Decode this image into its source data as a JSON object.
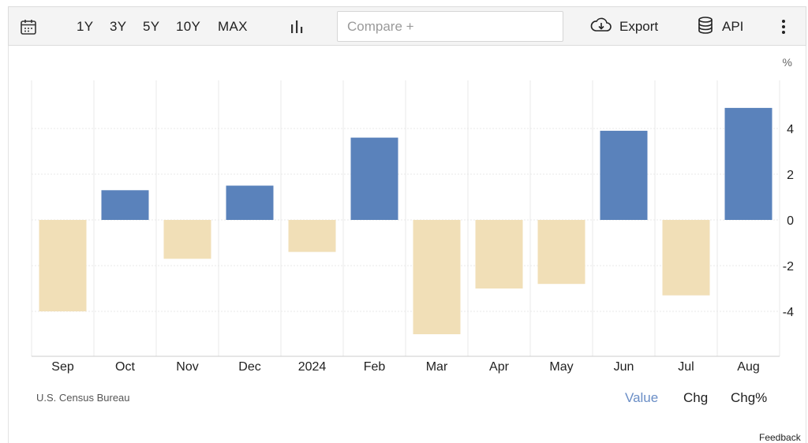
{
  "toolbar": {
    "ranges": [
      "1Y",
      "3Y",
      "5Y",
      "10Y",
      "MAX"
    ],
    "compare_placeholder": "Compare +",
    "export_label": "Export",
    "api_label": "API",
    "icons": [
      "calendar-icon",
      "bar-chart-icon",
      "cloud-download-icon",
      "database-icon",
      "more-vertical-icon"
    ]
  },
  "chart_data": {
    "type": "bar",
    "unit_label": "%",
    "categories": [
      "Sep",
      "Oct",
      "Nov",
      "Dec",
      "2024",
      "Feb",
      "Mar",
      "Apr",
      "May",
      "Jun",
      "Jul",
      "Aug"
    ],
    "values": [
      -4.0,
      1.3,
      -1.7,
      1.5,
      -1.4,
      3.6,
      -5.0,
      -3.0,
      -2.8,
      3.9,
      -3.3,
      4.9
    ],
    "ylim": [
      -6,
      6
    ],
    "yticks": [
      4,
      2,
      0,
      -2,
      -4
    ],
    "ytick_labels": [
      "4",
      "2",
      "0",
      "-2",
      "-4"
    ],
    "grid": true,
    "colors": {
      "positive": "#5a82bb",
      "negative": "#f1dfb7",
      "grid": "#e9e9e9",
      "axis": "#cccccc"
    }
  },
  "footer": {
    "source": "U.S. Census Bureau",
    "tabs": [
      "Value",
      "Chg",
      "Chg%"
    ],
    "active_tab": "Value",
    "feedback": "Feedback"
  }
}
